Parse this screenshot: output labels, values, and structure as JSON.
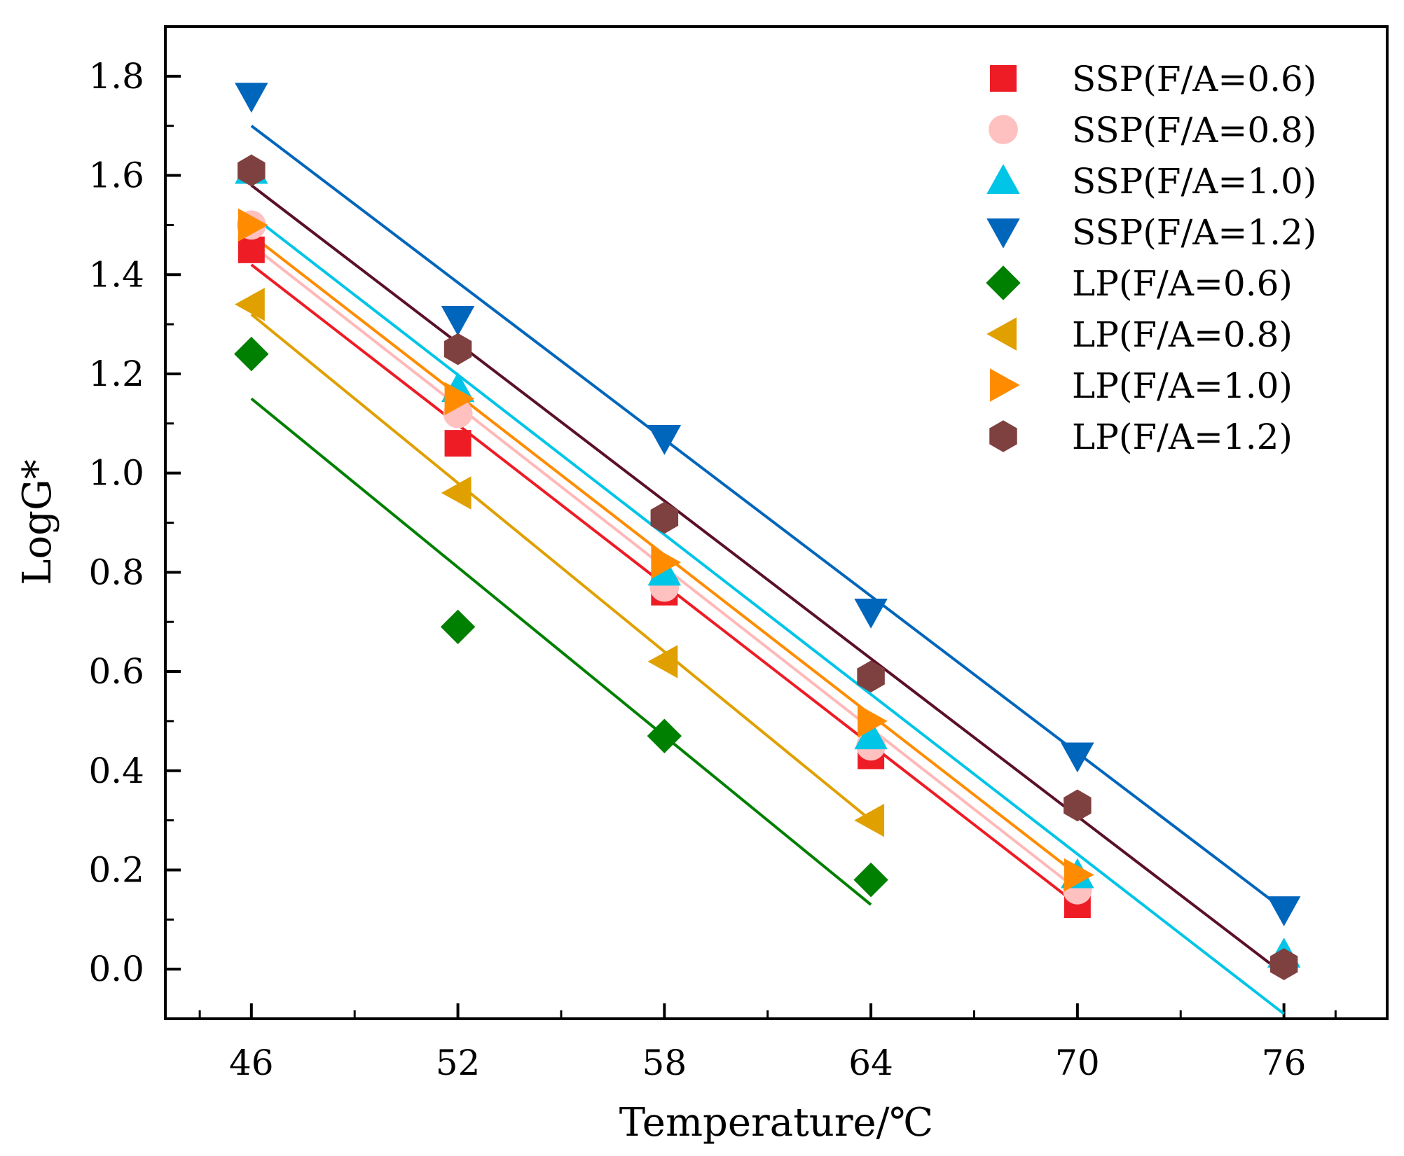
{
  "chart_data": {
    "type": "scatter",
    "title": "",
    "xlabel": "Temperature/℃",
    "ylabel": "LogG*",
    "xlim": [
      43.5,
      79.0
    ],
    "ylim": [
      -0.1,
      1.9
    ],
    "xticks": [
      46,
      52,
      58,
      64,
      70,
      76
    ],
    "xtick_labels": [
      "46",
      "52",
      "58",
      "64",
      "70",
      "76"
    ],
    "yticks": [
      0.0,
      0.2,
      0.4,
      0.6,
      0.8,
      1.0,
      1.2,
      1.4,
      1.6,
      1.8
    ],
    "ytick_labels": [
      "0.0",
      "0.2",
      "0.4",
      "0.6",
      "0.8",
      "1.0",
      "1.2",
      "1.4",
      "1.6",
      "1.8"
    ],
    "legend_position": "top-right",
    "grid": false,
    "series": [
      {
        "name": "SSP(F/A=0.6)",
        "marker": "square",
        "color": "#ee1c25",
        "x": [
          46,
          52,
          58,
          64,
          70
        ],
        "y": [
          1.45,
          1.06,
          0.76,
          0.43,
          0.13
        ],
        "fit": [
          [
            46,
            1.42
          ],
          [
            70,
            0.13
          ]
        ]
      },
      {
        "name": "SSP(F/A=0.8)",
        "marker": "circle",
        "color": "#ffc0c0",
        "x": [
          46,
          52,
          58,
          64,
          70
        ],
        "y": [
          1.5,
          1.12,
          0.77,
          0.45,
          0.16
        ],
        "fit": [
          [
            46,
            1.46
          ],
          [
            70,
            0.16
          ]
        ]
      },
      {
        "name": "SSP(F/A=1.0)",
        "marker": "triangle-up",
        "color": "#00c5e6",
        "x": [
          46,
          52,
          58,
          64,
          70,
          76
        ],
        "y": [
          1.61,
          1.17,
          0.8,
          0.47,
          0.19,
          0.03
        ],
        "fit": [
          [
            46,
            1.52
          ],
          [
            76,
            -0.09
          ]
        ]
      },
      {
        "name": "SSP(F/A=1.2)",
        "marker": "triangle-down",
        "color": "#0066bb",
        "x": [
          46,
          52,
          58,
          64,
          70,
          76
        ],
        "y": [
          1.76,
          1.31,
          1.07,
          0.72,
          0.43,
          0.12
        ],
        "fit": [
          [
            46,
            1.7
          ],
          [
            76,
            0.12
          ]
        ]
      },
      {
        "name": "LP(F/A=0.6)",
        "marker": "diamond",
        "color": "#008000",
        "x": [
          46,
          52,
          58,
          64
        ],
        "y": [
          1.24,
          0.69,
          0.47,
          0.18
        ],
        "fit": [
          [
            46,
            1.15
          ],
          [
            64,
            0.13
          ]
        ]
      },
      {
        "name": "LP(F/A=0.8)",
        "marker": "triangle-left",
        "color": "#e0a000",
        "x": [
          46,
          52,
          58,
          64
        ],
        "y": [
          1.34,
          0.96,
          0.62,
          0.3
        ],
        "fit": [
          [
            46,
            1.32
          ],
          [
            64,
            0.3
          ]
        ]
      },
      {
        "name": "LP(F/A=1.0)",
        "marker": "triangle-right",
        "color": "#ff8c00",
        "x": [
          46,
          52,
          58,
          64,
          70
        ],
        "y": [
          1.5,
          1.15,
          0.82,
          0.5,
          0.19
        ],
        "fit": [
          [
            46,
            1.48
          ],
          [
            70,
            0.19
          ]
        ]
      },
      {
        "name": "LP(F/A=1.2)",
        "marker": "hexagon",
        "color": "#7f4040",
        "x": [
          46,
          52,
          58,
          64,
          70,
          76
        ],
        "y": [
          1.61,
          1.25,
          0.91,
          0.59,
          0.33,
          0.01
        ],
        "fit": [
          [
            46,
            1.58
          ],
          [
            76,
            -0.01
          ]
        ],
        "fit_color": "#5a1028"
      }
    ]
  }
}
